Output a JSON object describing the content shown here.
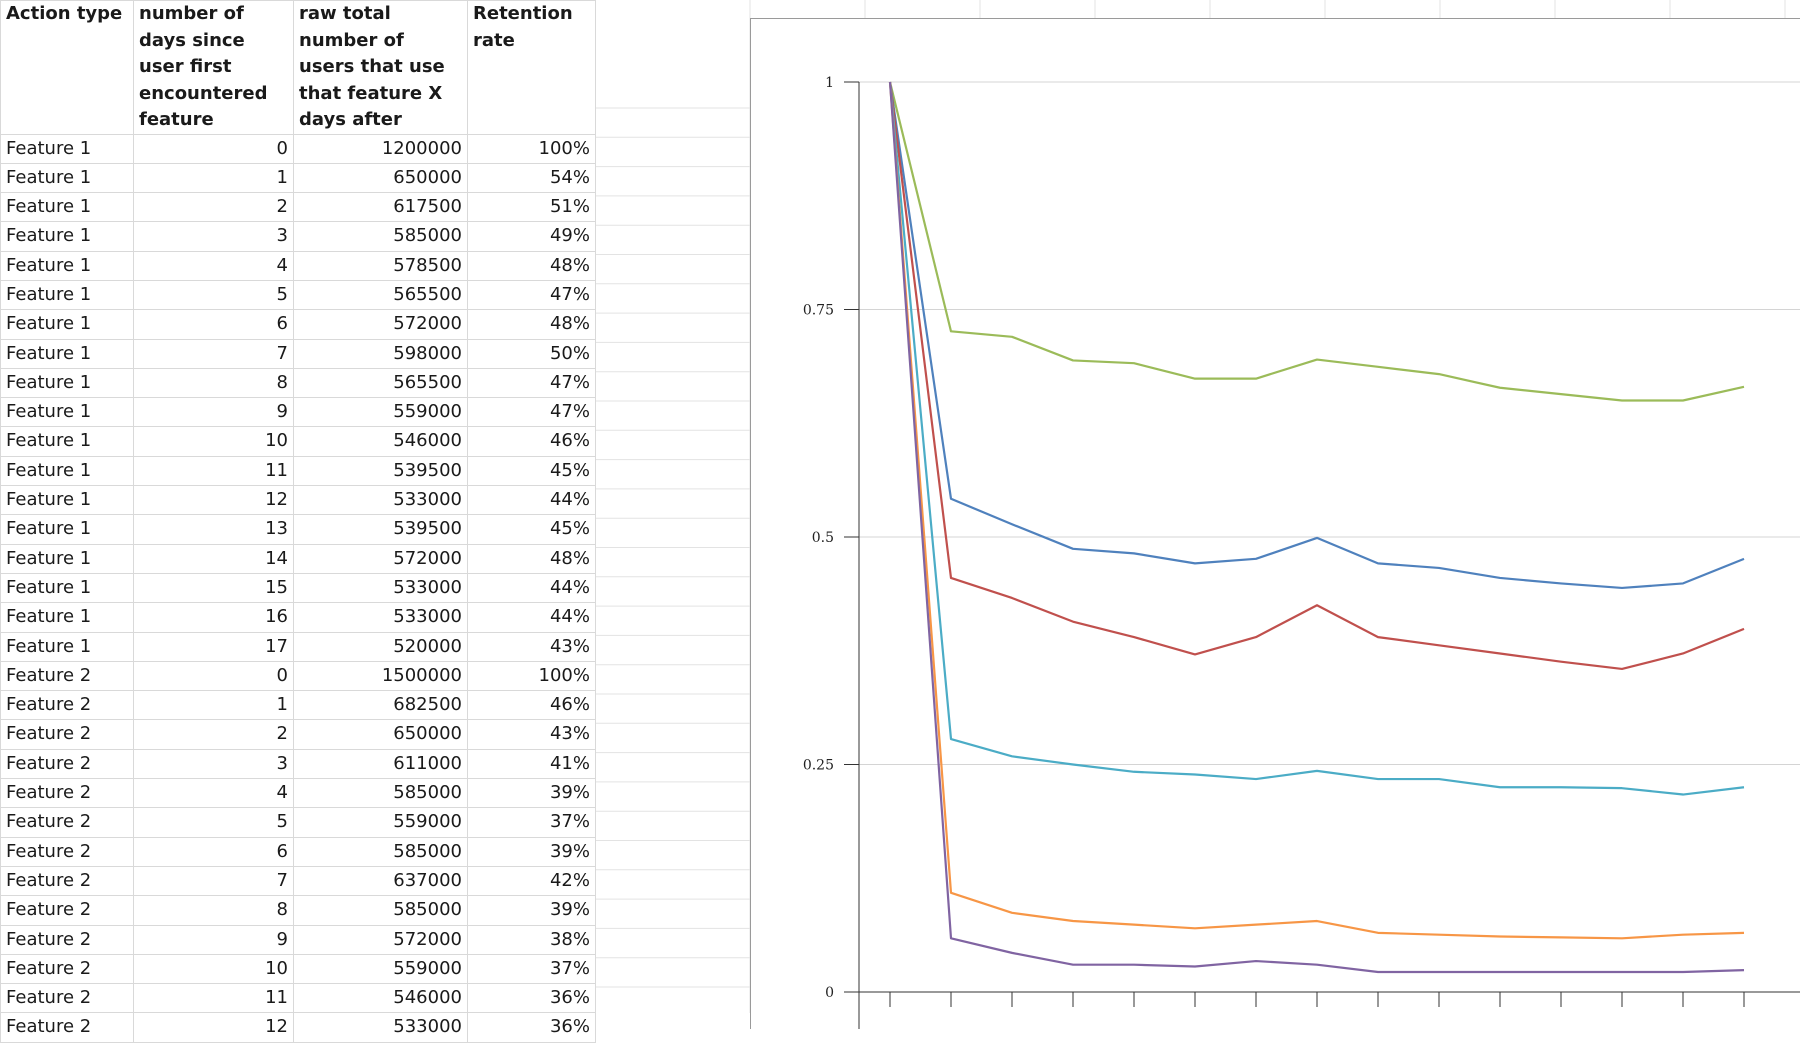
{
  "sheet": {
    "headers": [
      "Action type",
      "number of days since user first encountered feature",
      "raw total number of users that use that feature X days after",
      "Retention rate"
    ],
    "rows": [
      [
        "Feature 1",
        "0",
        "1200000",
        "100%"
      ],
      [
        "Feature 1",
        "1",
        "650000",
        "54%"
      ],
      [
        "Feature 1",
        "2",
        "617500",
        "51%"
      ],
      [
        "Feature 1",
        "3",
        "585000",
        "49%"
      ],
      [
        "Feature 1",
        "4",
        "578500",
        "48%"
      ],
      [
        "Feature 1",
        "5",
        "565500",
        "47%"
      ],
      [
        "Feature 1",
        "6",
        "572000",
        "48%"
      ],
      [
        "Feature 1",
        "7",
        "598000",
        "50%"
      ],
      [
        "Feature 1",
        "8",
        "565500",
        "47%"
      ],
      [
        "Feature 1",
        "9",
        "559000",
        "47%"
      ],
      [
        "Feature 1",
        "10",
        "546000",
        "46%"
      ],
      [
        "Feature 1",
        "11",
        "539500",
        "45%"
      ],
      [
        "Feature 1",
        "12",
        "533000",
        "44%"
      ],
      [
        "Feature 1",
        "13",
        "539500",
        "45%"
      ],
      [
        "Feature 1",
        "14",
        "572000",
        "48%"
      ],
      [
        "Feature 1",
        "15",
        "533000",
        "44%"
      ],
      [
        "Feature 1",
        "16",
        "533000",
        "44%"
      ],
      [
        "Feature 1",
        "17",
        "520000",
        "43%"
      ],
      [
        "Feature 2",
        "0",
        "1500000",
        "100%"
      ],
      [
        "Feature 2",
        "1",
        "682500",
        "46%"
      ],
      [
        "Feature 2",
        "2",
        "650000",
        "43%"
      ],
      [
        "Feature 2",
        "3",
        "611000",
        "41%"
      ],
      [
        "Feature 2",
        "4",
        "585000",
        "39%"
      ],
      [
        "Feature 2",
        "5",
        "559000",
        "37%"
      ],
      [
        "Feature 2",
        "6",
        "585000",
        "39%"
      ],
      [
        "Feature 2",
        "7",
        "637000",
        "42%"
      ],
      [
        "Feature 2",
        "8",
        "585000",
        "39%"
      ],
      [
        "Feature 2",
        "9",
        "572000",
        "38%"
      ],
      [
        "Feature 2",
        "10",
        "559000",
        "37%"
      ],
      [
        "Feature 2",
        "11",
        "546000",
        "36%"
      ],
      [
        "Feature 2",
        "12",
        "533000",
        "36%"
      ]
    ]
  },
  "chart_data": {
    "type": "line",
    "title": "",
    "xlabel": "",
    "ylabel": "",
    "ylim": [
      0,
      1
    ],
    "yticks": [
      "1",
      "0.75",
      "0.5",
      "0.25",
      "0"
    ],
    "grid": true,
    "x": [
      0,
      1,
      2,
      3,
      4,
      5,
      6,
      7,
      8,
      9,
      10,
      11,
      12,
      13,
      14
    ],
    "series": [
      {
        "color": "#9bbb59",
        "values": [
          1.0,
          0.726,
          0.72,
          0.694,
          0.691,
          0.674,
          0.674,
          0.695,
          0.687,
          0.679,
          0.664,
          0.657,
          0.65,
          0.65,
          0.665
        ]
      },
      {
        "color": "#4f81bd",
        "values": [
          1.0,
          0.542,
          0.514,
          0.487,
          0.482,
          0.471,
          0.476,
          0.499,
          0.471,
          0.466,
          0.455,
          0.449,
          0.444,
          0.449,
          0.476
        ]
      },
      {
        "color": "#c0504d",
        "values": [
          1.0,
          0.455,
          0.433,
          0.407,
          0.39,
          0.371,
          0.39,
          0.425,
          0.39,
          0.381,
          0.372,
          0.363,
          0.355,
          0.372,
          0.399
        ]
      },
      {
        "color": "#4bacc6",
        "values": [
          1.0,
          0.278,
          0.259,
          0.25,
          0.242,
          0.239,
          0.234,
          0.243,
          0.234,
          0.234,
          0.225,
          0.225,
          0.224,
          0.217,
          0.225
        ]
      },
      {
        "color": "#f79646",
        "values": [
          1.0,
          0.109,
          0.087,
          0.078,
          0.074,
          0.07,
          0.074,
          0.078,
          0.065,
          0.063,
          0.061,
          0.06,
          0.059,
          0.063,
          0.065
        ]
      },
      {
        "color": "#8064a2",
        "values": [
          1.0,
          0.059,
          0.043,
          0.03,
          0.03,
          0.028,
          0.034,
          0.03,
          0.022,
          0.022,
          0.022,
          0.022,
          0.022,
          0.022,
          0.024
        ]
      }
    ]
  }
}
